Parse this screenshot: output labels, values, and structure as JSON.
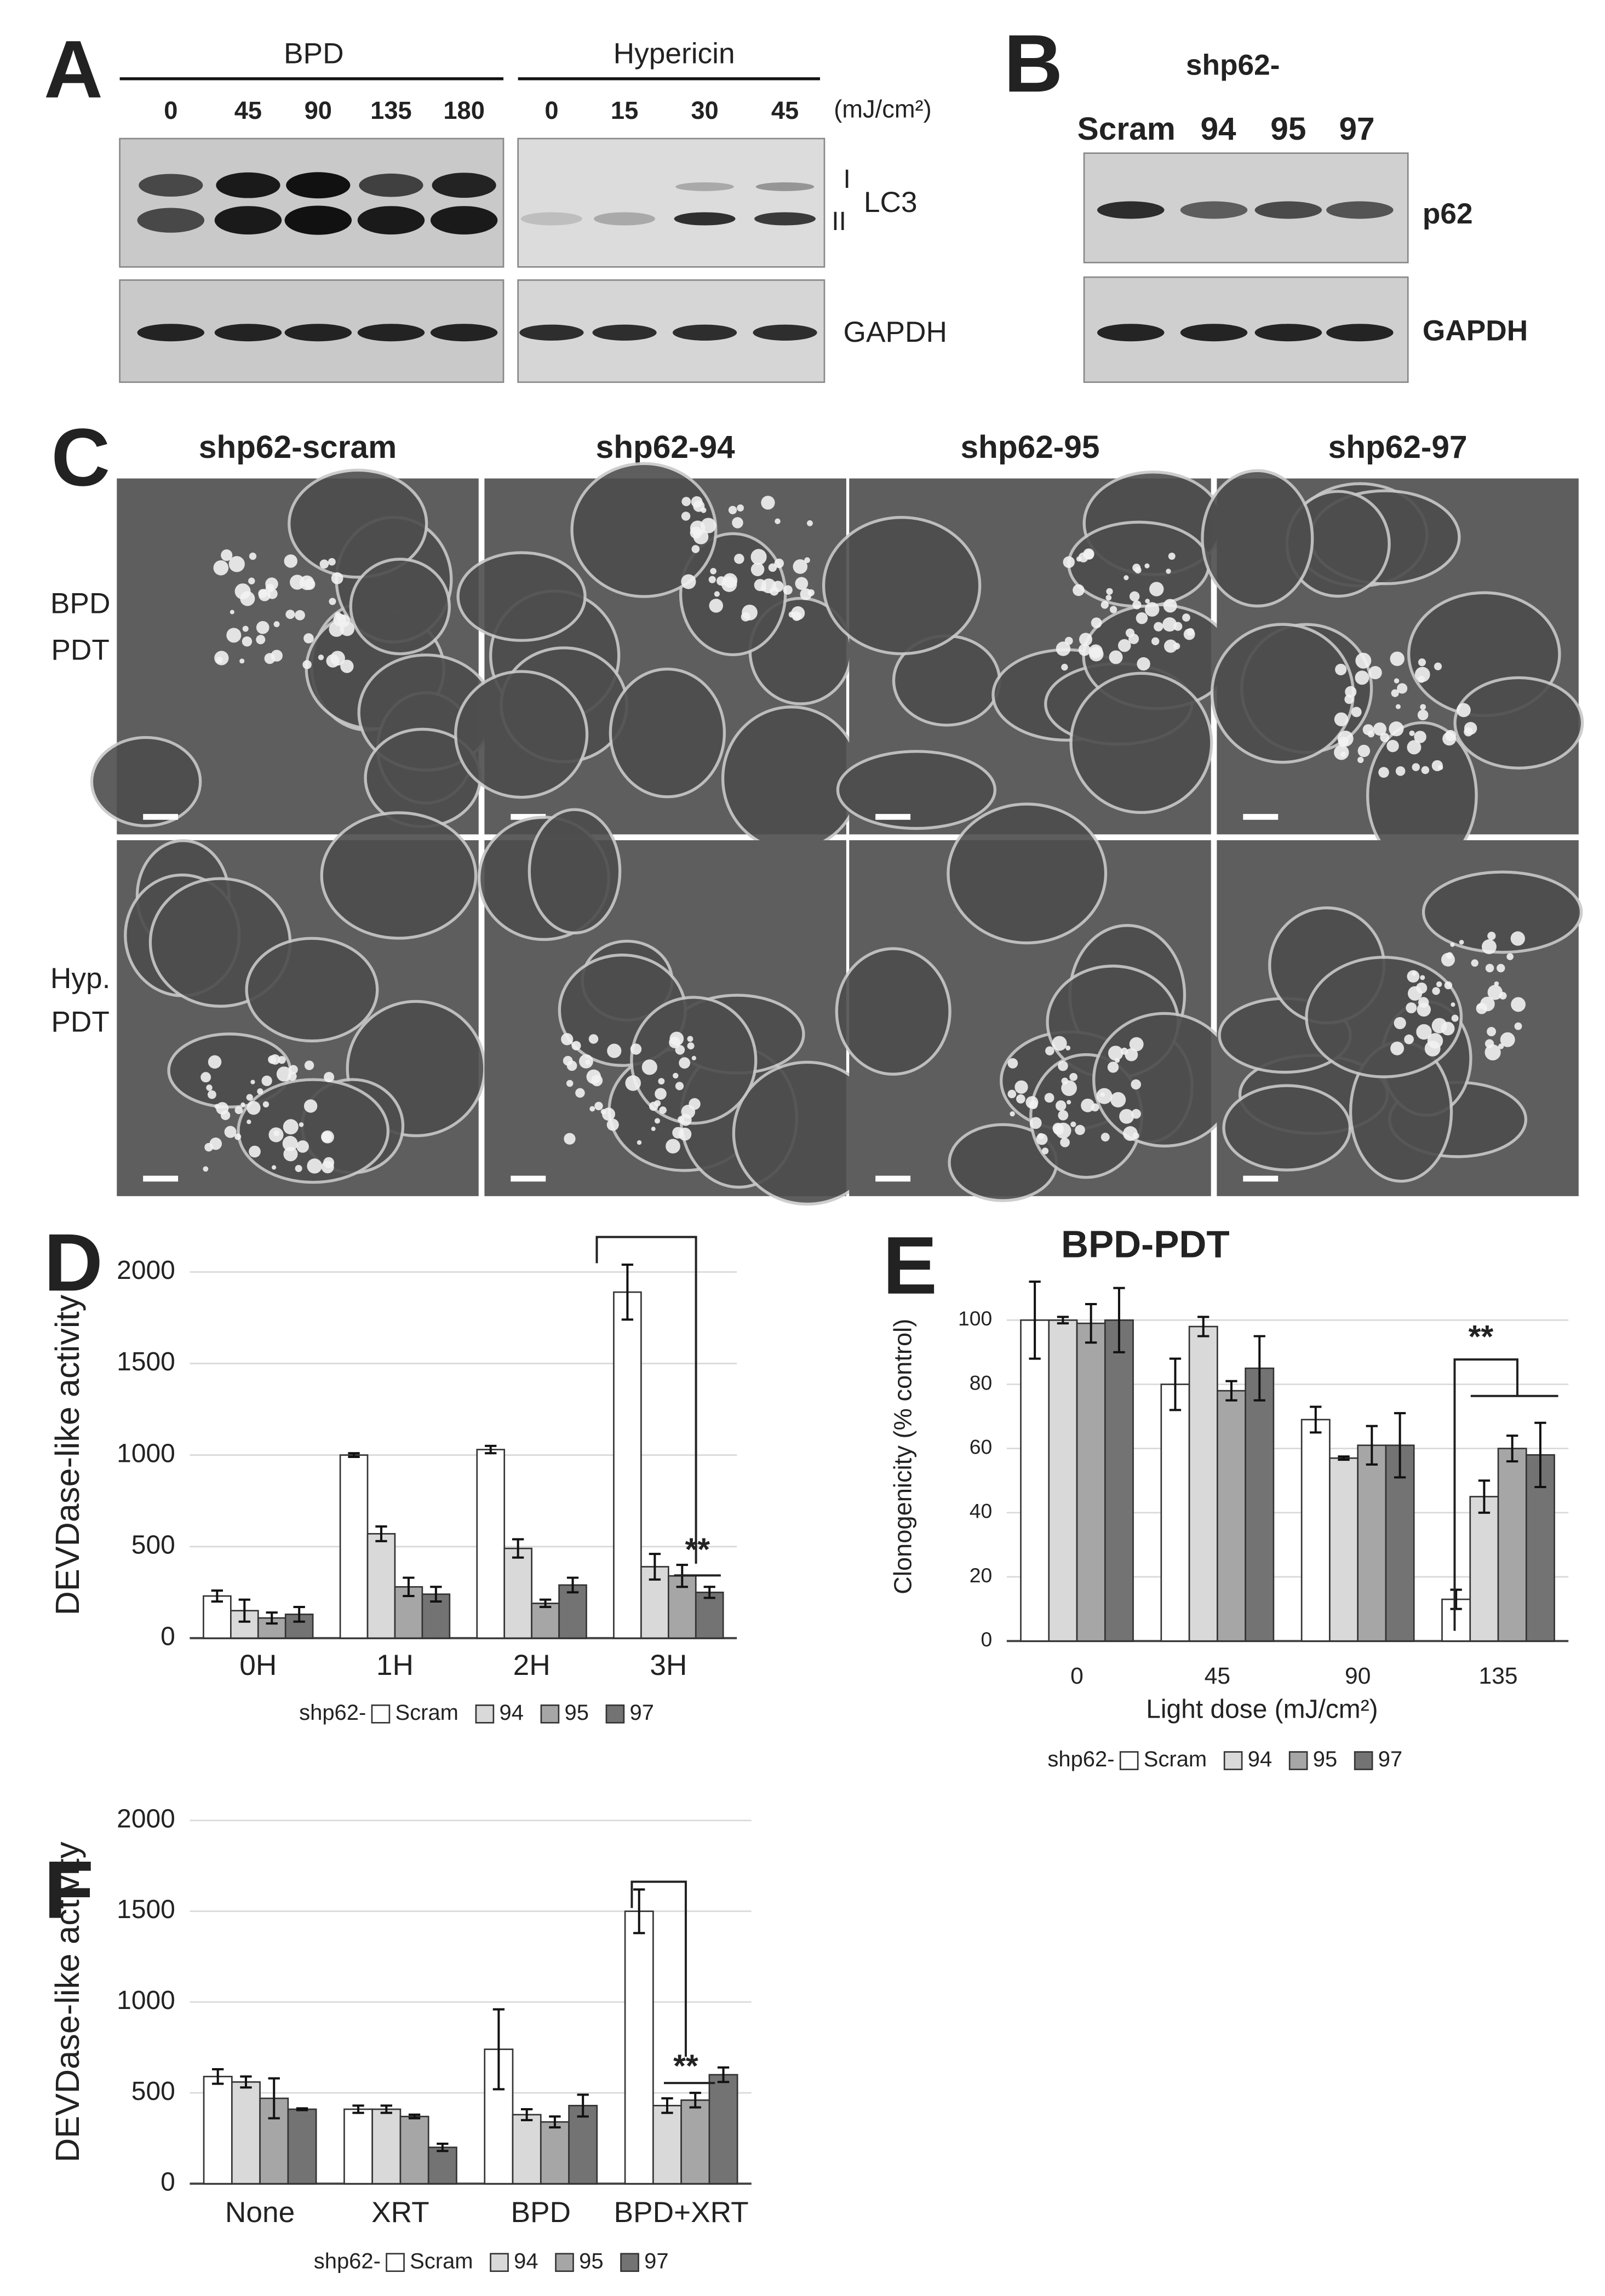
{
  "panels": {
    "A": {
      "letter": "A",
      "groups": [
        {
          "label": "BPD",
          "doses": [
            "0",
            "45",
            "90",
            "135",
            "180"
          ]
        },
        {
          "label": "Hypericin",
          "doses": [
            "0",
            "15",
            "30",
            "45"
          ]
        }
      ],
      "unit": "(mJ/cm²)",
      "bands": [
        "I",
        "II"
      ],
      "markers": [
        "LC3",
        "GAPDH"
      ]
    },
    "B": {
      "letter": "B",
      "prefix": "shp62-",
      "lanes": [
        "Scram",
        "94",
        "95",
        "97"
      ],
      "markers": [
        "p62",
        "GAPDH"
      ]
    },
    "C": {
      "letter": "C",
      "columns": [
        "shp62-scram",
        "shp62-94",
        "shp62-95",
        "shp62-97"
      ],
      "rows": [
        [
          "BPD",
          "PDT"
        ],
        [
          "Hyp.",
          "PDT"
        ]
      ]
    }
  },
  "chart_data": [
    {
      "type": "bar",
      "panel": "D",
      "y_label": "DEVDase-like activity",
      "categories": [
        "0H",
        "1H",
        "2H",
        "3H"
      ],
      "series": [
        {
          "name": "Scram",
          "color": "#ffffff",
          "values": [
            230,
            1000,
            1030,
            1890
          ],
          "errors": [
            30,
            10,
            20,
            150
          ]
        },
        {
          "name": "94",
          "color": "#d9d9d9",
          "values": [
            150,
            570,
            490,
            390
          ],
          "errors": [
            60,
            40,
            50,
            70
          ]
        },
        {
          "name": "95",
          "color": "#a6a6a6",
          "values": [
            110,
            280,
            190,
            340
          ],
          "errors": [
            30,
            50,
            20,
            60
          ]
        },
        {
          "name": "97",
          "color": "#737373",
          "values": [
            130,
            240,
            290,
            250
          ],
          "errors": [
            40,
            40,
            40,
            30
          ]
        }
      ],
      "legend_title": "shp62-",
      "annotation": "**",
      "ylim": [
        0,
        2000
      ],
      "yticks": [
        0,
        500,
        1000,
        1500,
        2000
      ],
      "grid": true
    },
    {
      "type": "bar",
      "panel": "E",
      "title": "BPD-PDT",
      "y_label": "Clonogenicity (% control)",
      "x_label": "Light dose (mJ/cm²)",
      "categories": [
        "0",
        "45",
        "90",
        "135"
      ],
      "series": [
        {
          "name": "Scram",
          "color": "#ffffff",
          "values": [
            100,
            80,
            69,
            13
          ],
          "errors": [
            12,
            8,
            4,
            3
          ]
        },
        {
          "name": "94",
          "color": "#d9d9d9",
          "values": [
            100,
            98,
            57,
            45
          ],
          "errors": [
            1,
            3,
            0.5,
            5
          ]
        },
        {
          "name": "95",
          "color": "#a6a6a6",
          "values": [
            99,
            78,
            61,
            60
          ],
          "errors": [
            6,
            3,
            6,
            4
          ]
        },
        {
          "name": "97",
          "color": "#737373",
          "values": [
            100,
            85,
            61,
            58
          ],
          "errors": [
            10,
            10,
            10,
            10
          ]
        }
      ],
      "legend_title": "shp62-",
      "annotation": "**",
      "ylim": [
        0,
        115
      ],
      "yticks": [
        0,
        20,
        40,
        60,
        80,
        100
      ],
      "grid": true
    },
    {
      "type": "bar",
      "panel": "F",
      "y_label": "DEVDase-like activity",
      "categories": [
        "None",
        "XRT",
        "BPD",
        "BPD+XRT"
      ],
      "series": [
        {
          "name": "Scram",
          "color": "#ffffff",
          "values": [
            590,
            410,
            740,
            1500
          ],
          "errors": [
            40,
            20,
            220,
            120
          ]
        },
        {
          "name": "94",
          "color": "#d9d9d9",
          "values": [
            560,
            410,
            380,
            430
          ],
          "errors": [
            30,
            20,
            30,
            40
          ]
        },
        {
          "name": "95",
          "color": "#a6a6a6",
          "values": [
            470,
            370,
            340,
            460
          ],
          "errors": [
            110,
            10,
            30,
            40
          ]
        },
        {
          "name": "97",
          "color": "#737373",
          "values": [
            410,
            200,
            430,
            600
          ],
          "errors": [
            5,
            20,
            60,
            40
          ]
        }
      ],
      "legend_title": "shp62-",
      "annotation": "**",
      "ylim": [
        0,
        2000
      ],
      "yticks": [
        0,
        500,
        1000,
        1500,
        2000
      ],
      "grid": true
    }
  ]
}
